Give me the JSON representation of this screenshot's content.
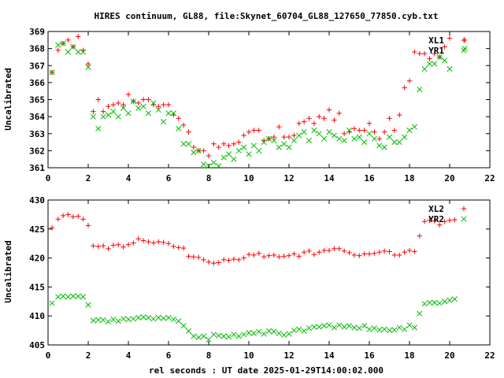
{
  "chart_data": [
    {
      "type": "scatter",
      "title": "HIRES continuum, GL88, file:Skynet_60704_GL88_127650_77850.cyb.txt",
      "xlabel": "",
      "ylabel": "Uncalibrated",
      "xlim": [
        0,
        22
      ],
      "ylim": [
        361,
        369
      ],
      "xticks": [
        "0",
        "2",
        "4",
        "6",
        "8",
        "10",
        "12",
        "14",
        "16",
        "18",
        "20",
        "22"
      ],
      "yticks": [
        "361",
        "362",
        "363",
        "364",
        "365",
        "366",
        "367",
        "368",
        "369"
      ],
      "legend_position": "top-right",
      "series": [
        {
          "name": "XL1",
          "marker": "plus",
          "color": "#ff0000",
          "x": [
            0.2,
            0.5,
            0.75,
            1.0,
            1.25,
            1.5,
            1.75,
            2.0,
            2.25,
            2.5,
            2.75,
            3.0,
            3.25,
            3.5,
            3.75,
            4.0,
            4.25,
            4.5,
            4.75,
            5.0,
            5.25,
            5.5,
            5.75,
            6.0,
            6.25,
            6.5,
            6.75,
            7.0,
            7.25,
            7.5,
            7.75,
            8.0,
            8.25,
            8.5,
            8.75,
            9.0,
            9.25,
            9.5,
            9.75,
            10.0,
            10.25,
            10.5,
            10.75,
            11.0,
            11.25,
            11.5,
            11.75,
            12.0,
            12.25,
            12.5,
            12.75,
            13.0,
            13.25,
            13.5,
            13.75,
            14.0,
            14.25,
            14.5,
            14.75,
            15.0,
            15.25,
            15.5,
            15.75,
            16.0,
            16.25,
            16.5,
            16.75,
            17.0,
            17.25,
            17.5,
            17.75,
            18.0,
            18.25,
            18.5,
            18.75,
            19.0,
            19.25,
            19.5,
            19.75,
            20.0,
            20.75
          ],
          "y": [
            366.6,
            367.9,
            368.3,
            368.5,
            368.1,
            368.7,
            367.9,
            367.1,
            364.3,
            365.0,
            364.3,
            364.6,
            364.7,
            364.8,
            364.7,
            365.3,
            364.9,
            364.8,
            365.0,
            365.0,
            364.7,
            364.6,
            364.7,
            364.7,
            364.1,
            363.9,
            363.5,
            363.1,
            362.2,
            362.0,
            362.0,
            361.7,
            362.4,
            362.2,
            362.4,
            362.3,
            362.4,
            362.5,
            362.9,
            363.1,
            363.2,
            363.2,
            362.6,
            362.7,
            362.8,
            363.4,
            362.8,
            362.8,
            362.9,
            363.6,
            363.7,
            363.9,
            363.6,
            364.0,
            363.9,
            364.4,
            363.8,
            364.2,
            363.0,
            363.1,
            363.3,
            363.2,
            363.2,
            363.6,
            363.1,
            362.7,
            363.1,
            363.9,
            363.2,
            364.1,
            365.7,
            366.1,
            367.8,
            367.7,
            367.7,
            367.4,
            367.7,
            367.5,
            368.1,
            368.6,
            368.5
          ]
        },
        {
          "name": "YR1",
          "marker": "cross",
          "color": "#00bb00",
          "x": [
            0.2,
            0.5,
            0.75,
            1.0,
            1.25,
            1.5,
            1.75,
            2.0,
            2.25,
            2.5,
            2.75,
            3.0,
            3.25,
            3.5,
            3.75,
            4.0,
            4.25,
            4.5,
            4.75,
            5.0,
            5.25,
            5.5,
            5.75,
            6.0,
            6.25,
            6.5,
            6.75,
            7.0,
            7.25,
            7.5,
            7.75,
            8.0,
            8.25,
            8.5,
            8.75,
            9.0,
            9.25,
            9.5,
            9.75,
            10.0,
            10.25,
            10.5,
            10.75,
            11.0,
            11.25,
            11.5,
            11.75,
            12.0,
            12.25,
            12.5,
            12.75,
            13.0,
            13.25,
            13.5,
            13.75,
            14.0,
            14.25,
            14.5,
            14.75,
            15.0,
            15.25,
            15.5,
            15.75,
            16.0,
            16.25,
            16.5,
            16.75,
            17.0,
            17.25,
            17.5,
            17.75,
            18.0,
            18.25,
            18.5,
            18.75,
            19.0,
            19.25,
            19.5,
            19.75,
            20.0,
            20.75
          ],
          "y": [
            366.6,
            368.2,
            368.3,
            367.8,
            368.1,
            367.8,
            367.8,
            366.9,
            364.0,
            363.3,
            364.0,
            364.1,
            364.3,
            364.0,
            364.5,
            364.2,
            364.9,
            364.5,
            364.6,
            364.2,
            364.8,
            364.4,
            363.7,
            364.2,
            364.2,
            363.3,
            362.4,
            362.4,
            361.9,
            362.0,
            361.2,
            361.1,
            361.3,
            361.1,
            361.6,
            361.8,
            361.5,
            362.0,
            362.2,
            361.8,
            362.3,
            362.0,
            362.5,
            362.7,
            362.6,
            362.2,
            362.4,
            362.2,
            362.6,
            362.9,
            363.1,
            362.6,
            363.2,
            363.0,
            362.7,
            363.1,
            362.9,
            362.7,
            362.6,
            363.2,
            362.7,
            362.8,
            362.5,
            363.0,
            362.7,
            362.3,
            362.2,
            362.8,
            362.5,
            362.5,
            362.8,
            363.2,
            363.4,
            365.6,
            366.8,
            367.1,
            367.1,
            367.5,
            367.3,
            366.8,
            368.0
          ]
        }
      ]
    },
    {
      "type": "scatter",
      "title": "",
      "xlabel": "rel seconds : UT date 2025-01-29T14:00:02.000",
      "ylabel": "Uncalibrated",
      "xlim": [
        0,
        22
      ],
      "ylim": [
        405,
        430
      ],
      "xticks": [
        "0",
        "2",
        "4",
        "6",
        "8",
        "10",
        "12",
        "14",
        "16",
        "18",
        "20",
        "22"
      ],
      "yticks": [
        "405",
        "410",
        "415",
        "420",
        "425",
        "430"
      ],
      "legend_position": "top-right",
      "series": [
        {
          "name": "XL2",
          "marker": "plus",
          "color": "#ff0000",
          "x": [
            0.2,
            0.5,
            0.75,
            1.0,
            1.25,
            1.5,
            1.75,
            2.0,
            2.25,
            2.5,
            2.75,
            3.0,
            3.25,
            3.5,
            3.75,
            4.0,
            4.25,
            4.5,
            4.75,
            5.0,
            5.25,
            5.5,
            5.75,
            6.0,
            6.25,
            6.5,
            6.75,
            7.0,
            7.25,
            7.5,
            7.75,
            8.0,
            8.25,
            8.5,
            8.75,
            9.0,
            9.25,
            9.5,
            9.75,
            10.0,
            10.25,
            10.5,
            10.75,
            11.0,
            11.25,
            11.5,
            11.75,
            12.0,
            12.25,
            12.5,
            12.75,
            13.0,
            13.25,
            13.5,
            13.75,
            14.0,
            14.25,
            14.5,
            14.75,
            15.0,
            15.25,
            15.5,
            15.75,
            16.0,
            16.25,
            16.5,
            16.75,
            17.0,
            17.25,
            17.5,
            17.75,
            18.0,
            18.25,
            18.5,
            18.75,
            19.0,
            19.25,
            19.5,
            19.75,
            20.0,
            20.25
          ],
          "y": [
            425.2,
            426.7,
            427.3,
            427.5,
            427.1,
            427.2,
            426.7,
            425.6,
            422.1,
            422.0,
            422.1,
            421.6,
            422.2,
            422.3,
            421.9,
            422.3,
            422.6,
            423.3,
            423.0,
            422.8,
            422.6,
            422.8,
            422.7,
            422.5,
            422.0,
            421.8,
            421.7,
            420.3,
            420.2,
            420.1,
            419.7,
            419.3,
            419.1,
            419.2,
            419.7,
            419.6,
            419.8,
            419.7,
            420.0,
            420.6,
            420.5,
            420.8,
            420.2,
            420.4,
            420.5,
            420.2,
            420.3,
            420.4,
            420.7,
            420.3,
            421.0,
            421.2,
            420.6,
            421.0,
            421.3,
            421.3,
            421.6,
            421.6,
            421.2,
            420.9,
            420.5,
            420.4,
            420.7,
            420.7,
            420.8,
            421.0,
            421.2,
            421.1,
            420.5,
            420.5,
            421.0,
            421.3,
            421.1,
            423.8,
            426.3,
            426.5,
            426.4,
            425.7,
            426.3,
            426.5,
            426.6
          ]
        },
        {
          "name": "YR2",
          "marker": "cross",
          "color": "#00bb00",
          "x": [
            0.2,
            0.5,
            0.75,
            1.0,
            1.25,
            1.5,
            1.75,
            2.0,
            2.25,
            2.5,
            2.75,
            3.0,
            3.25,
            3.5,
            3.75,
            4.0,
            4.25,
            4.5,
            4.75,
            5.0,
            5.25,
            5.5,
            5.75,
            6.0,
            6.25,
            6.5,
            6.75,
            7.0,
            7.25,
            7.5,
            7.75,
            8.0,
            8.25,
            8.5,
            8.75,
            9.0,
            9.25,
            9.5,
            9.75,
            10.0,
            10.25,
            10.5,
            10.75,
            11.0,
            11.25,
            11.5,
            11.75,
            12.0,
            12.25,
            12.5,
            12.75,
            13.0,
            13.25,
            13.5,
            13.75,
            14.0,
            14.25,
            14.5,
            14.75,
            15.0,
            15.25,
            15.5,
            15.75,
            16.0,
            16.25,
            16.5,
            16.75,
            17.0,
            17.25,
            17.5,
            17.75,
            18.0,
            18.25,
            18.5,
            18.75,
            19.0,
            19.25,
            19.5,
            19.75,
            20.0,
            20.25
          ],
          "y": [
            412.2,
            413.3,
            413.4,
            413.3,
            413.4,
            413.4,
            413.3,
            411.9,
            409.2,
            409.3,
            409.3,
            409.0,
            409.4,
            409.1,
            409.5,
            409.4,
            409.5,
            409.7,
            409.8,
            409.7,
            409.5,
            409.7,
            409.6,
            409.7,
            409.4,
            409.1,
            408.3,
            407.4,
            406.5,
            406.3,
            406.5,
            405.9,
            406.8,
            406.6,
            406.5,
            406.4,
            406.8,
            406.5,
            406.8,
            407.1,
            407.0,
            407.3,
            406.9,
            407.4,
            407.3,
            407.0,
            406.7,
            406.9,
            407.5,
            407.7,
            407.4,
            407.9,
            408.1,
            408.1,
            408.3,
            408.4,
            408.0,
            408.4,
            408.1,
            408.3,
            408.0,
            407.9,
            408.3,
            407.7,
            407.9,
            407.6,
            407.7,
            407.5,
            407.6,
            408.0,
            407.7,
            408.4,
            408.0,
            410.4,
            412.1,
            412.3,
            412.3,
            412.2,
            412.5,
            412.7,
            412.9
          ]
        }
      ]
    }
  ]
}
